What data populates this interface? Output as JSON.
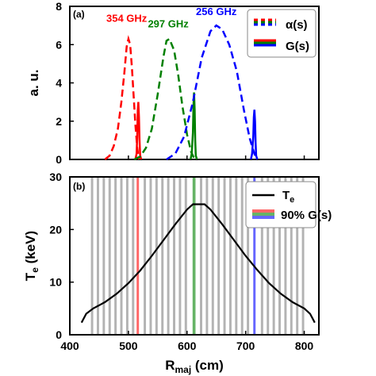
{
  "chart_data": [
    {
      "type": "line",
      "panel_tag": "(a)",
      "ylabel": "a. u.",
      "xlim": [
        400,
        825
      ],
      "ylim": [
        0,
        8
      ],
      "yticks": [
        0,
        2,
        4,
        6,
        8
      ],
      "ytick_labels": [
        "0",
        "2",
        "4",
        "6",
        "8"
      ],
      "legend_position": "top-right",
      "legend": [
        {
          "label": "α(s)",
          "style": "dashed",
          "colors": [
            "#ff0000",
            "#008000",
            "#0000ff"
          ]
        },
        {
          "label": "G(s)",
          "style": "solid",
          "colors": [
            "#ff0000",
            "#008000",
            "#0000ff"
          ]
        }
      ],
      "series": [
        {
          "name": "354 GHz",
          "color": "#ff0000",
          "kind": "alpha",
          "x": [
            460,
            468,
            475,
            482,
            488,
            493,
            497,
            500,
            503,
            506,
            509,
            512,
            515,
            518
          ],
          "y": [
            0.0,
            0.2,
            0.7,
            1.6,
            3.0,
            4.5,
            5.9,
            6.3,
            6.0,
            4.8,
            3.3,
            1.8,
            0.6,
            0.0
          ]
        },
        {
          "name": "",
          "color": "#ff0000",
          "kind": "G",
          "x": [
            512,
            514,
            515,
            516,
            517,
            518,
            519,
            520,
            522
          ],
          "y": [
            0.0,
            0.3,
            1.2,
            2.6,
            3.0,
            2.2,
            1.0,
            0.2,
            0.0
          ]
        },
        {
          "name": "297 GHz",
          "color": "#008000",
          "kind": "alpha",
          "x": [
            510,
            520,
            530,
            540,
            550,
            560,
            565,
            570,
            578,
            585,
            592,
            600,
            607,
            613
          ],
          "y": [
            0.0,
            0.15,
            0.6,
            1.6,
            3.4,
            5.4,
            6.2,
            6.3,
            5.7,
            4.4,
            2.8,
            1.3,
            0.4,
            0.0
          ]
        },
        {
          "name": "",
          "color": "#008000",
          "kind": "G",
          "x": [
            606,
            608,
            610,
            611,
            612,
            613,
            614,
            615,
            617
          ],
          "y": [
            0.0,
            0.3,
            1.4,
            2.8,
            3.5,
            2.6,
            1.0,
            0.2,
            0.0
          ]
        },
        {
          "name": "256 GHz",
          "color": "#0000ff",
          "kind": "alpha",
          "x": [
            565,
            580,
            595,
            610,
            625,
            640,
            650,
            660,
            672,
            685,
            697,
            707,
            715,
            720
          ],
          "y": [
            0.0,
            0.3,
            1.2,
            3.0,
            5.3,
            6.7,
            7.0,
            6.8,
            6.0,
            4.6,
            2.6,
            1.1,
            0.3,
            0.0
          ]
        },
        {
          "name": "",
          "color": "#0000ff",
          "kind": "G",
          "x": [
            709,
            711,
            713,
            714,
            715,
            716,
            717,
            718,
            720
          ],
          "y": [
            0.0,
            0.3,
            1.2,
            2.2,
            2.6,
            2.0,
            0.9,
            0.2,
            0.0
          ]
        }
      ]
    },
    {
      "type": "line",
      "panel_tag": "(b)",
      "xlabel": "Rₘₐⱼ (cm)",
      "xlabel_main": "R",
      "xlabel_sub": "maj",
      "xlabel_unit": " (cm)",
      "ylabel_main": "T",
      "ylabel_sub": "e",
      "ylabel_unit": " (keV)",
      "xlim": [
        400,
        825
      ],
      "ylim": [
        0,
        30
      ],
      "xticks": [
        400,
        500,
        600,
        700,
        800
      ],
      "xtick_labels": [
        "400",
        "500",
        "600",
        "700",
        "800"
      ],
      "yticks": [
        0,
        10,
        20,
        30
      ],
      "ytick_labels": [
        "0",
        "10",
        "20",
        "30"
      ],
      "legend_position": "top-right",
      "legend": [
        {
          "label_main": "T",
          "label_sub": "e",
          "style": "solid",
          "color": "#000000"
        },
        {
          "label": "90% G(s)",
          "style": "band",
          "colors": [
            "#ff0000",
            "#008000",
            "#0000ff"
          ]
        }
      ],
      "te_profile": {
        "name": "Te",
        "color": "#000000",
        "x": [
          420,
          428,
          440,
          460,
          480,
          500,
          520,
          540,
          560,
          580,
          600,
          610,
          630,
          640,
          660,
          680,
          700,
          720,
          740,
          760,
          780,
          800,
          810,
          818
        ],
        "y": [
          2.3,
          4.0,
          5.0,
          6.2,
          7.8,
          9.8,
          12.2,
          15.0,
          18.0,
          21.0,
          23.8,
          24.8,
          24.8,
          23.8,
          21.0,
          18.0,
          15.0,
          12.3,
          9.8,
          7.8,
          6.2,
          5.0,
          4.0,
          2.3
        ]
      },
      "channel_bands": [
        {
          "center": 438,
          "width": 4
        },
        {
          "center": 448,
          "width": 4
        },
        {
          "center": 458,
          "width": 4
        },
        {
          "center": 468,
          "width": 4
        },
        {
          "center": 478,
          "width": 4
        },
        {
          "center": 488,
          "width": 4
        },
        {
          "center": 498,
          "width": 4
        },
        {
          "center": 508,
          "width": 4
        },
        {
          "center": 528,
          "width": 4
        },
        {
          "center": 538,
          "width": 4
        },
        {
          "center": 548,
          "width": 4
        },
        {
          "center": 558,
          "width": 4
        },
        {
          "center": 568,
          "width": 4
        },
        {
          "center": 578,
          "width": 4
        },
        {
          "center": 588,
          "width": 4
        },
        {
          "center": 598,
          "width": 4
        },
        {
          "center": 624,
          "width": 4
        },
        {
          "center": 634,
          "width": 4
        },
        {
          "center": 644,
          "width": 4
        },
        {
          "center": 654,
          "width": 4
        },
        {
          "center": 664,
          "width": 4
        },
        {
          "center": 674,
          "width": 4
        },
        {
          "center": 684,
          "width": 4
        },
        {
          "center": 694,
          "width": 4
        },
        {
          "center": 704,
          "width": 4
        },
        {
          "center": 728,
          "width": 4
        },
        {
          "center": 738,
          "width": 4
        },
        {
          "center": 748,
          "width": 4
        },
        {
          "center": 758,
          "width": 4
        },
        {
          "center": 768,
          "width": 4
        },
        {
          "center": 778,
          "width": 4
        },
        {
          "center": 788,
          "width": 4
        },
        {
          "center": 798,
          "width": 4
        }
      ],
      "highlight_bands": [
        {
          "center": 516,
          "width": 4,
          "color": "#ff0000"
        },
        {
          "center": 612,
          "width": 5,
          "color": "#008000"
        },
        {
          "center": 715,
          "width": 4,
          "color": "#0000ff"
        }
      ]
    }
  ]
}
